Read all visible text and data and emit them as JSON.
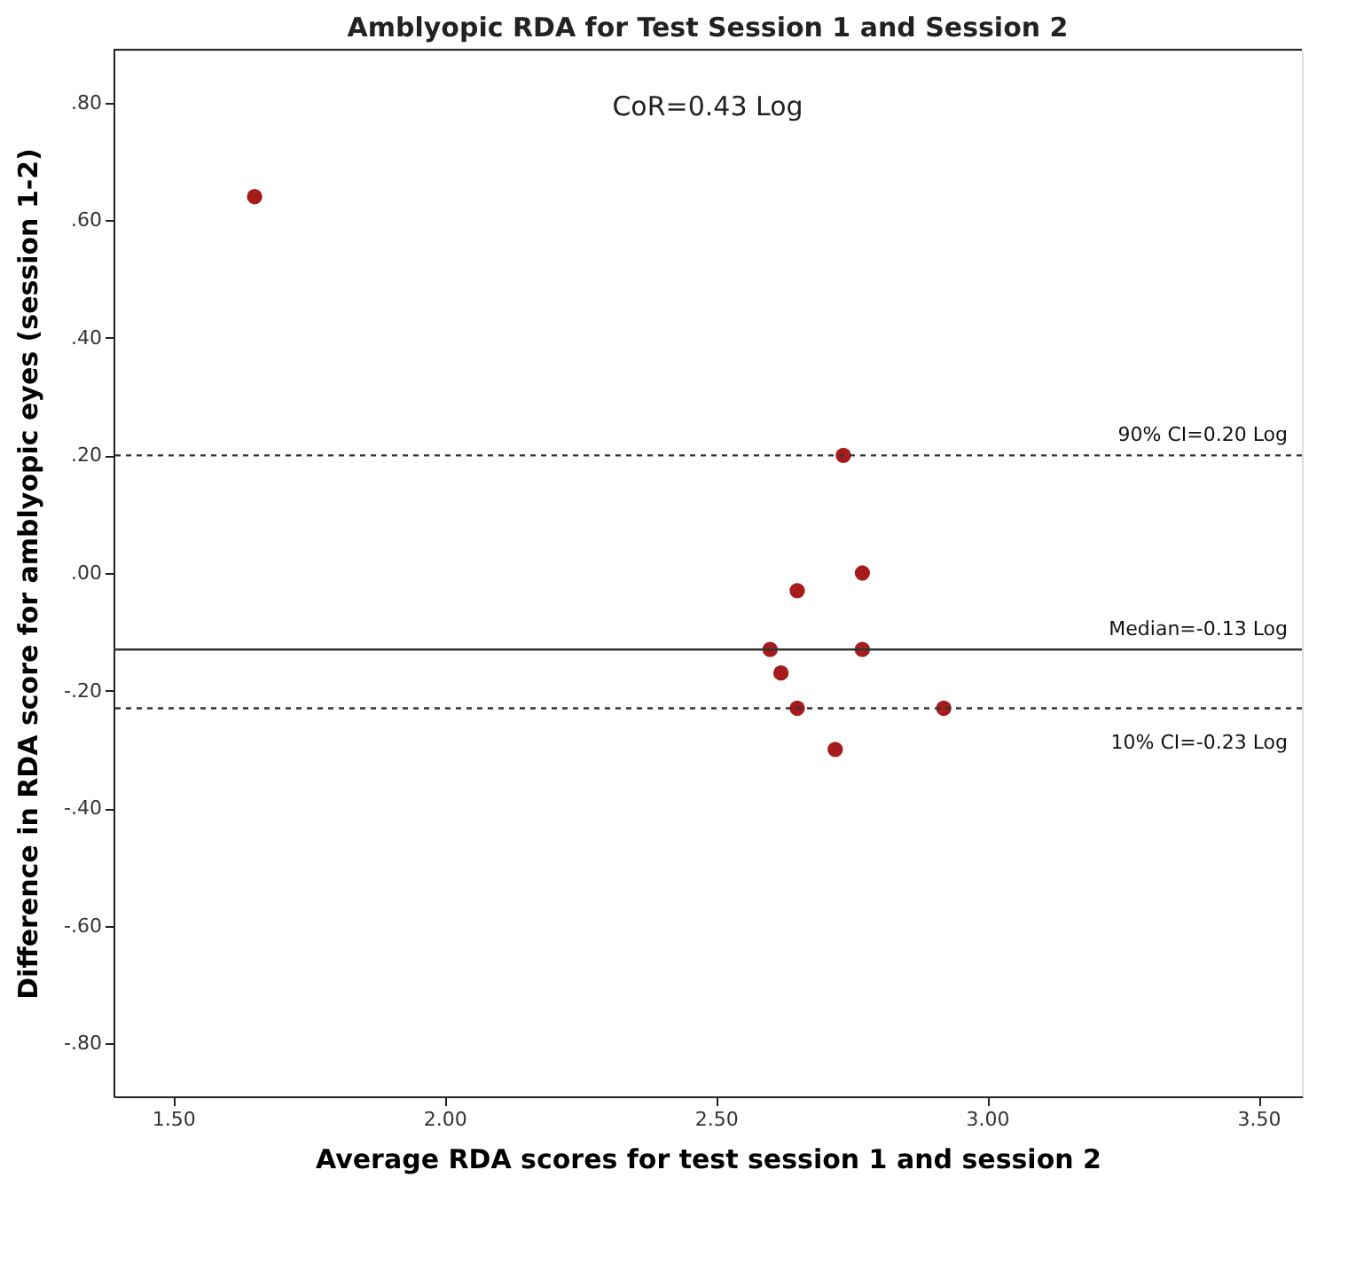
{
  "chart_data": {
    "type": "scatter",
    "title": "Amblyopic RDA for Test Session 1 and Session 2",
    "xlabel": "Average RDA scores for test session 1 and session 2",
    "ylabel": "Difference in RDA score for amblyopic eyes (session 1-2)",
    "x": [
      1.65,
      2.735,
      2.77,
      2.65,
      2.6,
      2.77,
      2.62,
      2.65,
      2.92,
      2.72
    ],
    "series": [
      {
        "color": "#a61c1c",
        "values": [
          0.64,
          0.2,
          0.0,
          -0.03,
          -0.13,
          -0.13,
          -0.17,
          -0.23,
          -0.23,
          -0.3
        ]
      }
    ],
    "marker": "circle",
    "xlim": [
      1.39,
      3.58
    ],
    "ylim": [
      -0.89,
      0.89
    ],
    "xticks": [
      {
        "value": 1.5,
        "label": "1.50"
      },
      {
        "value": 2.0,
        "label": "2.00"
      },
      {
        "value": 2.5,
        "label": "2.50"
      },
      {
        "value": 3.0,
        "label": "3.00"
      },
      {
        "value": 3.5,
        "label": "3.50"
      }
    ],
    "yticks": [
      {
        "value": -0.8,
        "label": "-.80"
      },
      {
        "value": -0.6,
        "label": "-.60"
      },
      {
        "value": -0.4,
        "label": "-.40"
      },
      {
        "value": -0.2,
        "label": "-.20"
      },
      {
        "value": 0.0,
        "label": ".00"
      },
      {
        "value": 0.2,
        "label": ".20"
      },
      {
        "value": 0.4,
        "label": ".40"
      },
      {
        "value": 0.6,
        "label": ".60"
      },
      {
        "value": 0.8,
        "label": ".80"
      }
    ],
    "ref_lines": [
      {
        "axis": "y",
        "value": 0.2,
        "label": "90% CI=0.20 Log",
        "line_style": "dashed",
        "color": "#333333"
      },
      {
        "axis": "y",
        "value": -0.13,
        "label": "Median=-0.13 Log",
        "line_style": "solid",
        "color": "#333333"
      },
      {
        "axis": "y",
        "value": -0.23,
        "label": "10% CI=-0.23 Log",
        "line_style": "dashed",
        "color": "#333333"
      }
    ],
    "annotations": [
      "CoR=0.43 Log"
    ],
    "grid": false
  }
}
